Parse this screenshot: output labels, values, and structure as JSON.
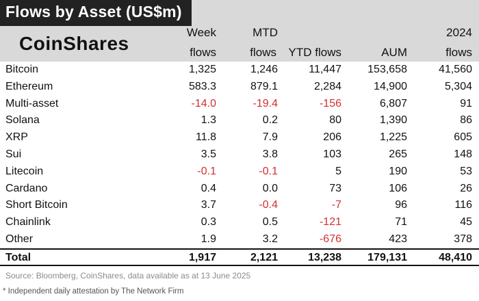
{
  "title": "Flows by Asset (US$m)",
  "brand": "CoinShares",
  "headers": {
    "col1": [
      "Week",
      "flows"
    ],
    "col2": [
      "MTD",
      "flows"
    ],
    "col3": [
      "",
      "YTD flows"
    ],
    "col4": [
      "",
      "AUM"
    ],
    "col5": [
      "2024",
      "flows"
    ]
  },
  "rows": [
    {
      "name": "Bitcoin",
      "week": "1,325",
      "mtd": "1,246",
      "ytd": "11,447",
      "aum": "153,658",
      "y2024": "41,560"
    },
    {
      "name": "Ethereum",
      "week": "583.3",
      "mtd": "879.1",
      "ytd": "2,284",
      "aum": "14,900",
      "y2024": "5,304"
    },
    {
      "name": "Multi-asset",
      "week": "-14.0",
      "mtd": "-19.4",
      "ytd": "-156",
      "aum": "6,807",
      "y2024": "91"
    },
    {
      "name": "Solana",
      "week": "1.3",
      "mtd": "0.2",
      "ytd": "80",
      "aum": "1,390",
      "y2024": "86"
    },
    {
      "name": "XRP",
      "week": "11.8",
      "mtd": "7.9",
      "ytd": "206",
      "aum": "1,225",
      "y2024": "605"
    },
    {
      "name": "Sui",
      "week": "3.5",
      "mtd": "3.8",
      "ytd": "103",
      "aum": "265",
      "y2024": "148"
    },
    {
      "name": "Litecoin",
      "week": "-0.1",
      "mtd": "-0.1",
      "ytd": "5",
      "aum": "190",
      "y2024": "53"
    },
    {
      "name": "Cardano",
      "week": "0.4",
      "mtd": "0.0",
      "ytd": "73",
      "aum": "106",
      "y2024": "26"
    },
    {
      "name": "Short Bitcoin",
      "week": "3.7",
      "mtd": "-0.4",
      "ytd": "-7",
      "aum": "96",
      "y2024": "116"
    },
    {
      "name": "Chainlink",
      "week": "0.3",
      "mtd": "0.5",
      "ytd": "-121",
      "aum": "71",
      "y2024": "45"
    },
    {
      "name": "Other",
      "week": "1.9",
      "mtd": "3.2",
      "ytd": "-676",
      "aum": "423",
      "y2024": "378"
    }
  ],
  "total": {
    "name": "Total",
    "week": "1,917",
    "mtd": "2,121",
    "ytd": "13,238",
    "aum": "179,131",
    "y2024": "48,410"
  },
  "source": "Source: Bloomberg, CoinShares, data available as at 13 June 2025",
  "footnote": "* Independent daily attestation by The Network Firm",
  "colors": {
    "negative": "#d32f2f",
    "title_bg": "#222222",
    "header_bg": "#d9d9d9"
  }
}
